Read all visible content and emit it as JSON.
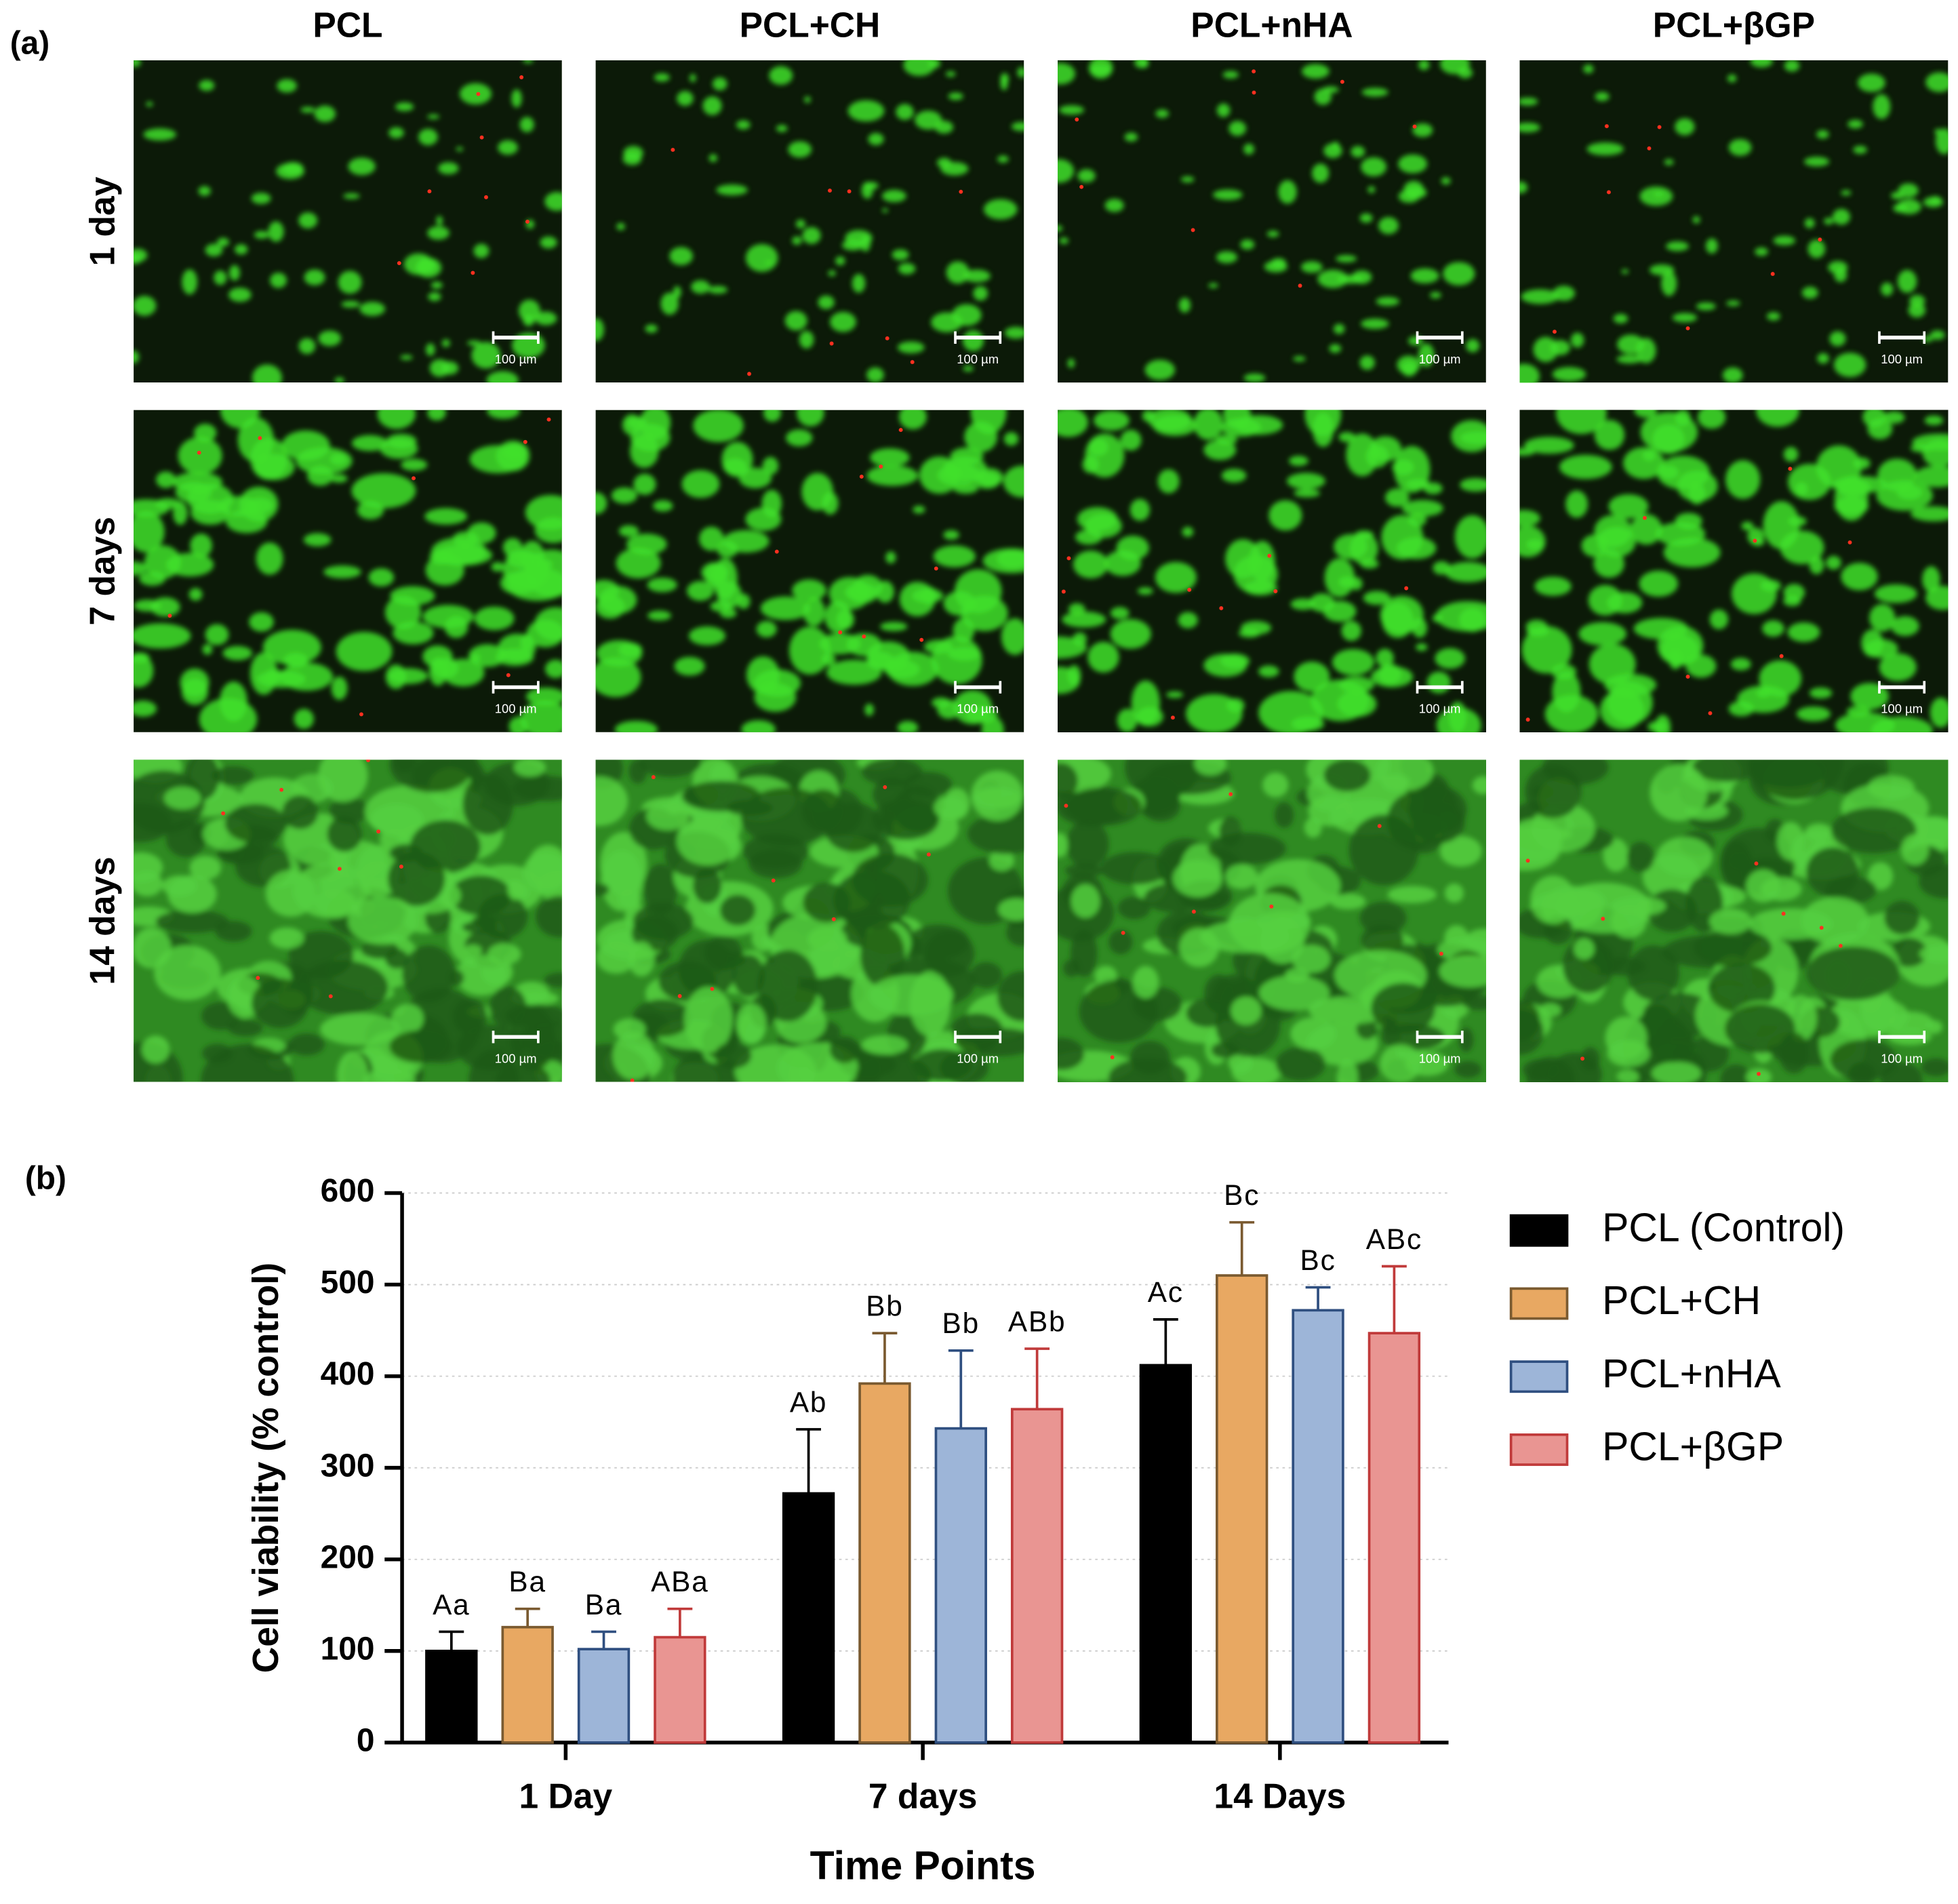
{
  "figure": {
    "panel_a": {
      "label": "(a)",
      "columns": [
        "PCL",
        "PCL+CH",
        "PCL+nHA",
        "PCL+βGP"
      ],
      "rows": [
        "1 day",
        "7 days",
        "14 days"
      ],
      "scale_bar": "100 µm"
    },
    "panel_b_label": "(b)"
  },
  "chart_data": {
    "type": "bar",
    "categories": [
      "1 Day",
      "7 days",
      "14 Days"
    ],
    "xlabel": "Time Points",
    "ylabel": "Cell viability  (% control)",
    "ylim": [
      0,
      600
    ],
    "yticks": [
      0,
      100,
      200,
      300,
      400,
      500,
      600
    ],
    "grid": true,
    "legend": "right",
    "series": [
      {
        "name": "PCL (Control)",
        "color": "#000000",
        "edge": "#000000",
        "values": [
          100,
          272,
          412
        ],
        "errors": [
          21,
          70,
          50
        ],
        "annotations": [
          "Aa",
          "Ab",
          "Ac"
        ]
      },
      {
        "name": "PCL+CH",
        "color": "#E8A862",
        "edge": "#7a5a30",
        "values": [
          126,
          392,
          510
        ],
        "errors": [
          20,
          55,
          58
        ],
        "annotations": [
          "Ba",
          "Bb",
          "Bc"
        ]
      },
      {
        "name": "PCL+nHA",
        "color": "#9DB5D8",
        "edge": "#2f4f80",
        "values": [
          102,
          343,
          472
        ],
        "errors": [
          19,
          85,
          25
        ],
        "annotations": [
          "Ba",
          "Bb",
          "Bc"
        ]
      },
      {
        "name": "PCL+βGP",
        "color": "#E99592",
        "edge": "#c03a3a",
        "values": [
          115,
          364,
          447
        ],
        "errors": [
          31,
          66,
          73
        ],
        "annotations": [
          "ABa",
          "ABb",
          "ABc"
        ]
      }
    ]
  }
}
